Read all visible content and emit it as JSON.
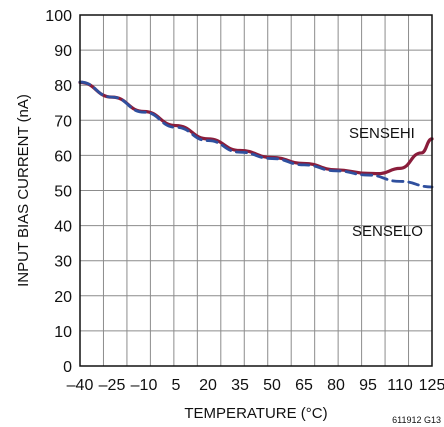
{
  "chart_data": {
    "type": "line",
    "title": "",
    "xlabel": "TEMPERATURE (°C)",
    "ylabel": "INPUT BIAS CURRENT (nA)",
    "xlim": [
      -40,
      125
    ],
    "ylim": [
      0,
      100
    ],
    "grid": true,
    "x_ticks": [
      -40,
      -25,
      -10,
      5,
      20,
      35,
      50,
      65,
      80,
      95,
      110,
      125
    ],
    "x_tick_labels": [
      "–40",
      "–25",
      "–10",
      "5",
      "20",
      "35",
      "50",
      "65",
      "80",
      "95",
      "110",
      "125"
    ],
    "y_ticks": [
      0,
      10,
      20,
      30,
      40,
      50,
      60,
      70,
      80,
      90,
      100
    ],
    "y_tick_labels": [
      "0",
      "10",
      "20",
      "30",
      "40",
      "50",
      "60",
      "70",
      "80",
      "90",
      "100"
    ],
    "figure_id": "611912 G13",
    "series": [
      {
        "name": "SENSEHI",
        "style": "solid",
        "color": "#8a1d3b",
        "x": [
          -40,
          -25,
          -10,
          5,
          20,
          35,
          50,
          65,
          80,
          95,
          100,
          110,
          120,
          125
        ],
        "y": [
          80.8,
          76.6,
          72.5,
          68.5,
          64.7,
          61.4,
          59.4,
          57.7,
          55.9,
          54.9,
          54.8,
          56.3,
          60.7,
          64.7
        ]
      },
      {
        "name": "SENSELO",
        "style": "dashed",
        "color": "#2f4f9e",
        "x": [
          -40,
          -25,
          -10,
          5,
          20,
          35,
          50,
          65,
          80,
          95,
          110,
          125
        ],
        "y": [
          80.9,
          76.6,
          72.3,
          68.0,
          64.2,
          60.9,
          59.1,
          57.3,
          55.6,
          54.4,
          52.6,
          51.0
        ]
      }
    ]
  }
}
